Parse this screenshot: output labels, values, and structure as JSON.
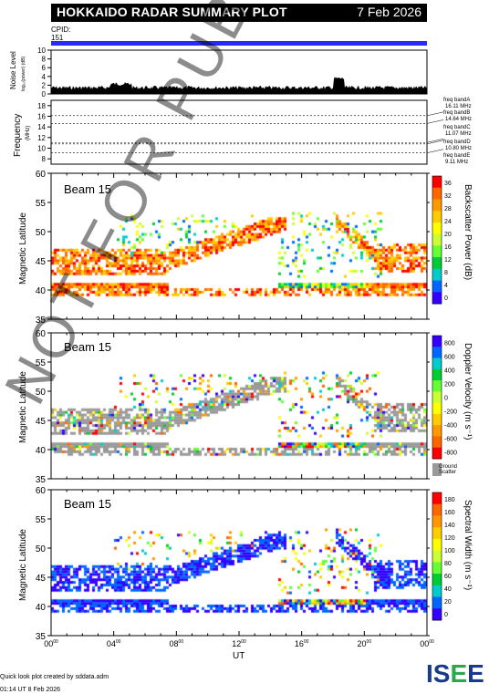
{
  "header": {
    "title": "HOKKAIDO RADAR SUMMARY PLOT",
    "date": "7 Feb 2026"
  },
  "cpid": {
    "label": "CPID:",
    "value": "151",
    "bar_color": "#2a2aff"
  },
  "noise": {
    "label": "Noise Level",
    "units": "log₁₀(power) (dB)",
    "yticks": [
      "10",
      "8",
      "6",
      "4",
      "2",
      "0"
    ]
  },
  "frequency": {
    "label": "Frequency",
    "units": "(MHz)",
    "yticks": [
      "18",
      "16",
      "14",
      "12",
      "10",
      "8"
    ],
    "bands": [
      {
        "name": "freq bandA",
        "value": "16.11 MHz"
      },
      {
        "name": "freq bandB",
        "value": "14.64 MHz"
      },
      {
        "name": "freq bandC",
        "value": "11.07 MHz"
      },
      {
        "name": "freq bandD",
        "value": "10.80 MHz"
      },
      {
        "name": "freq bandE",
        "value": "9.11 MHz"
      }
    ]
  },
  "panels": [
    {
      "beam_label": "Beam 15",
      "ylabel": "Magnetic Latitude",
      "colorbar_label": "Backscatter Power (dB)",
      "colorbar_ticks": [
        "36",
        "32",
        "28",
        "24",
        "20",
        "16",
        "12",
        "8",
        "4",
        "0"
      ],
      "colors": [
        "#ff0000",
        "#ff6600",
        "#ff9900",
        "#ffcc00",
        "#ffff00",
        "#ccff33",
        "#66ff33",
        "#00cc33",
        "#00cccc",
        "#0066ff",
        "#3300ff"
      ]
    },
    {
      "beam_label": "Beam 15",
      "ylabel": "Magnetic Latitude",
      "colorbar_label": "Doppler Velocity (m s⁻¹)",
      "colorbar_ticks": [
        "800",
        "600",
        "400",
        "200",
        "0",
        "-200",
        "-400",
        "-600",
        "-800"
      ],
      "ground_label": "Ground",
      "ground_label2": "Scatter",
      "colors": [
        "#3300ff",
        "#0066ff",
        "#00cccc",
        "#00cc33",
        "#66ff33",
        "#ccff33",
        "#ffff00",
        "#ffcc00",
        "#ff9900",
        "#ff6600",
        "#ff0000"
      ]
    },
    {
      "beam_label": "Beam 15",
      "ylabel": "Magnetic Latitude",
      "colorbar_label": "Spectral Width (m s⁻¹)",
      "colorbar_ticks": [
        "180",
        "160",
        "140",
        "120",
        "100",
        "80",
        "60",
        "40",
        "20",
        "0"
      ],
      "colors": [
        "#ff0000",
        "#ff6600",
        "#ff9900",
        "#ffcc00",
        "#ffff00",
        "#ccff33",
        "#66ff33",
        "#00cc33",
        "#00cccc",
        "#0066ff",
        "#3300ff"
      ]
    }
  ],
  "lat_ticks": [
    "60",
    "55",
    "50",
    "45",
    "40",
    "35"
  ],
  "xaxis": {
    "label": "UT",
    "ticks": [
      "00",
      "04",
      "08",
      "12",
      "16",
      "20",
      "00"
    ],
    "sup": "00"
  },
  "footer": {
    "line1": "Quick look plot created by sddata.adm",
    "line2": "01:14 UT  8 Feb 2026"
  },
  "logo": {
    "text1": "IS",
    "text2": "E",
    "text3": "E"
  },
  "watermark": "NOT FOR PUBLICATION",
  "chart_data": {
    "type": "heatmap",
    "title": "HOKKAIDO RADAR SUMMARY PLOT",
    "xlabel": "UT",
    "ylabel": "Magnetic Latitude",
    "xlim": [
      0,
      24
    ],
    "ylim": [
      35,
      60
    ],
    "noise_ylim": [
      0,
      10
    ],
    "freq_ylim": [
      7,
      19
    ],
    "freq_band_mhz": [
      16.11,
      14.64,
      11.07,
      10.8,
      9.11
    ]
  }
}
